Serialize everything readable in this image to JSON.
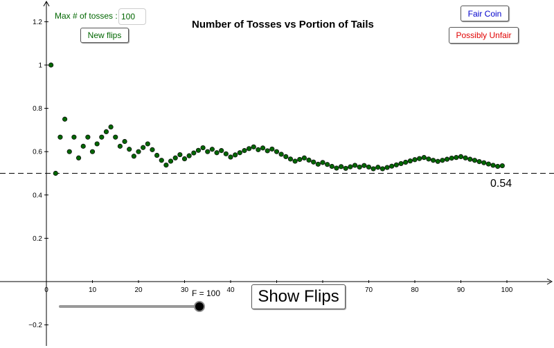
{
  "controls": {
    "max_label": "Max # of tosses :",
    "max_value": "100",
    "new_flips_label": "New flips",
    "fair_coin_label": "Fair Coin",
    "unfair_label": "Possibly Unfair",
    "show_flips_label": "Show Flips",
    "slider_label": "F = 100",
    "slider_value": 100,
    "slider_min": 1,
    "slider_max": 100
  },
  "last_value_label": "0.54",
  "colors": {
    "point_fill": "#006600",
    "point_stroke": "#111111",
    "new_flips_text": "#006600",
    "fair_coin_text": "#0000cc",
    "unfair_text": "#e00000",
    "slider_track": "#999999",
    "slider_knob": "#000000"
  },
  "chart_data": {
    "type": "scatter",
    "title": "Number of Tosses vs Portion of Tails",
    "xlabel": "",
    "ylabel": "",
    "xlim": [
      -10,
      110
    ],
    "ylim": [
      -0.3,
      1.3
    ],
    "x_ticks": [
      0,
      10,
      20,
      30,
      40,
      50,
      60,
      70,
      80,
      90,
      100
    ],
    "y_ticks": [
      -0.2,
      0.2,
      0.4,
      0.6,
      0.8,
      1,
      1.2
    ],
    "y_tick_labels": [
      "−0.2",
      "0.2",
      "0.4",
      "0.6",
      "0.8",
      "1",
      "1.2"
    ],
    "reference_line": {
      "y": 0.5,
      "style": "dashed"
    },
    "grid": false,
    "x": [
      1,
      2,
      3,
      4,
      5,
      6,
      7,
      8,
      9,
      10,
      11,
      12,
      13,
      14,
      15,
      16,
      17,
      18,
      19,
      20,
      21,
      22,
      23,
      24,
      25,
      26,
      27,
      28,
      29,
      30,
      31,
      32,
      33,
      34,
      35,
      36,
      37,
      38,
      39,
      40,
      41,
      42,
      43,
      44,
      45,
      46,
      47,
      48,
      49,
      50,
      51,
      52,
      53,
      54,
      55,
      56,
      57,
      58,
      59,
      60,
      61,
      62,
      63,
      64,
      65,
      66,
      67,
      68,
      69,
      70,
      71,
      72,
      73,
      74,
      75,
      76,
      77,
      78,
      79,
      80,
      81,
      82,
      83,
      84,
      85,
      86,
      87,
      88,
      89,
      90,
      91,
      92,
      93,
      94,
      95,
      96,
      97,
      98,
      99
    ],
    "y": [
      1.0,
      0.5,
      0.667,
      0.75,
      0.6,
      0.667,
      0.571,
      0.625,
      0.667,
      0.6,
      0.636,
      0.667,
      0.692,
      0.714,
      0.667,
      0.625,
      0.647,
      0.611,
      0.579,
      0.6,
      0.619,
      0.636,
      0.609,
      0.583,
      0.56,
      0.538,
      0.556,
      0.571,
      0.586,
      0.567,
      0.581,
      0.594,
      0.606,
      0.618,
      0.6,
      0.611,
      0.595,
      0.605,
      0.59,
      0.575,
      0.585,
      0.595,
      0.605,
      0.614,
      0.622,
      0.609,
      0.617,
      0.604,
      0.612,
      0.6,
      0.588,
      0.577,
      0.566,
      0.556,
      0.564,
      0.571,
      0.561,
      0.552,
      0.542,
      0.55,
      0.541,
      0.532,
      0.524,
      0.531,
      0.523,
      0.53,
      0.537,
      0.529,
      0.536,
      0.529,
      0.521,
      0.528,
      0.521,
      0.527,
      0.533,
      0.539,
      0.545,
      0.551,
      0.557,
      0.563,
      0.568,
      0.573,
      0.566,
      0.56,
      0.555,
      0.56,
      0.565,
      0.57,
      0.573,
      0.577,
      0.571,
      0.565,
      0.56,
      0.554,
      0.549,
      0.543,
      0.537,
      0.532,
      0.535
    ]
  }
}
